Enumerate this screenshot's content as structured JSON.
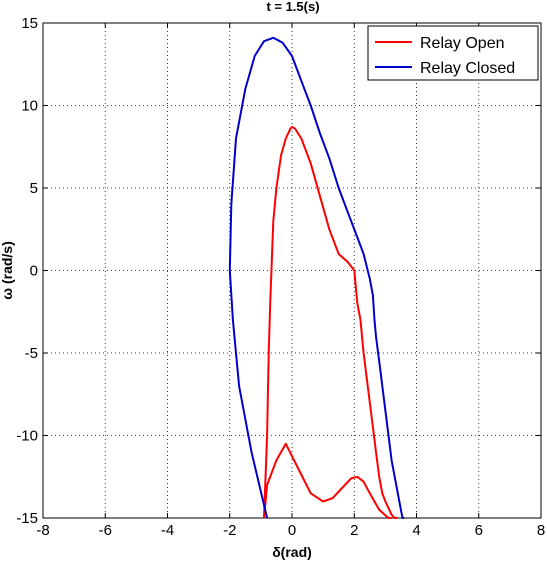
{
  "chart_data": {
    "type": "line",
    "title": "t = 1.5(s)",
    "xlabel": "δ(rad)",
    "ylabel": "ω (rad/s)",
    "xlim": [
      -8,
      8
    ],
    "ylim": [
      -15,
      15
    ],
    "xticks": [
      -8,
      -6,
      -4,
      -2,
      0,
      2,
      4,
      6,
      8
    ],
    "yticks": [
      -15,
      -10,
      -5,
      0,
      5,
      10,
      15
    ],
    "grid": true,
    "legend_position": "top-right",
    "series": [
      {
        "name": "Relay Open",
        "color": "#ff0000",
        "x": [
          -0.9,
          -0.8,
          -0.75,
          -0.7,
          -0.6,
          -0.5,
          -0.35,
          -0.2,
          -0.05,
          0.0,
          0.1,
          0.3,
          0.6,
          0.9,
          1.2,
          1.5,
          1.8,
          2.0,
          2.05,
          2.1,
          2.2,
          2.25,
          2.3,
          2.4,
          2.5,
          2.6,
          2.7,
          2.8,
          2.9,
          3.0,
          3.1,
          3.2,
          3.3,
          3.38
        ],
        "y": [
          -15,
          -10,
          -5,
          -2,
          3,
          5,
          7,
          8,
          8.6,
          8.7,
          8.6,
          8,
          6.5,
          4.5,
          2.5,
          1,
          0.5,
          0,
          -1,
          -2,
          -3,
          -4,
          -5,
          -6.5,
          -8,
          -9.5,
          -11,
          -12.5,
          -13.5,
          -14,
          -14.4,
          -14.8,
          -15,
          -15
        ],
        "x2": [
          -0.9,
          -0.8,
          -0.5,
          -0.2,
          0.2,
          0.6,
          1.0,
          1.3,
          1.6,
          1.9,
          2.1,
          2.3,
          2.5,
          2.8,
          3.1,
          3.2
        ],
        "y2": [
          -15,
          -13,
          -11.5,
          -10.5,
          -12,
          -13.5,
          -14,
          -13.8,
          -13.2,
          -12.6,
          -12.5,
          -12.8,
          -13.5,
          -14.5,
          -15,
          -15
        ]
      },
      {
        "name": "Relay Closed",
        "color": "#0000cc",
        "x": [
          -0.8,
          -1.3,
          -1.7,
          -1.9,
          -2.0,
          -1.95,
          -1.8,
          -1.5,
          -1.2,
          -0.9,
          -0.6,
          -0.3,
          0.0,
          0.3,
          0.6,
          0.9,
          1.2,
          1.5,
          1.8,
          2.1,
          2.3,
          2.5,
          2.6,
          2.65,
          2.7,
          2.8,
          2.9,
          3.0,
          3.1,
          3.2,
          3.3,
          3.4,
          3.5,
          3.55,
          3.6
        ],
        "y": [
          -15,
          -11,
          -7,
          -3,
          0,
          4,
          8,
          11,
          13,
          13.9,
          14.1,
          13.8,
          13,
          11.5,
          10,
          8.3,
          6.8,
          5,
          3.5,
          2,
          1,
          -0.5,
          -1.5,
          -3,
          -4,
          -5.5,
          -7,
          -8.5,
          -10,
          -11.5,
          -12.5,
          -13.5,
          -14.5,
          -15,
          -15
        ]
      }
    ]
  }
}
